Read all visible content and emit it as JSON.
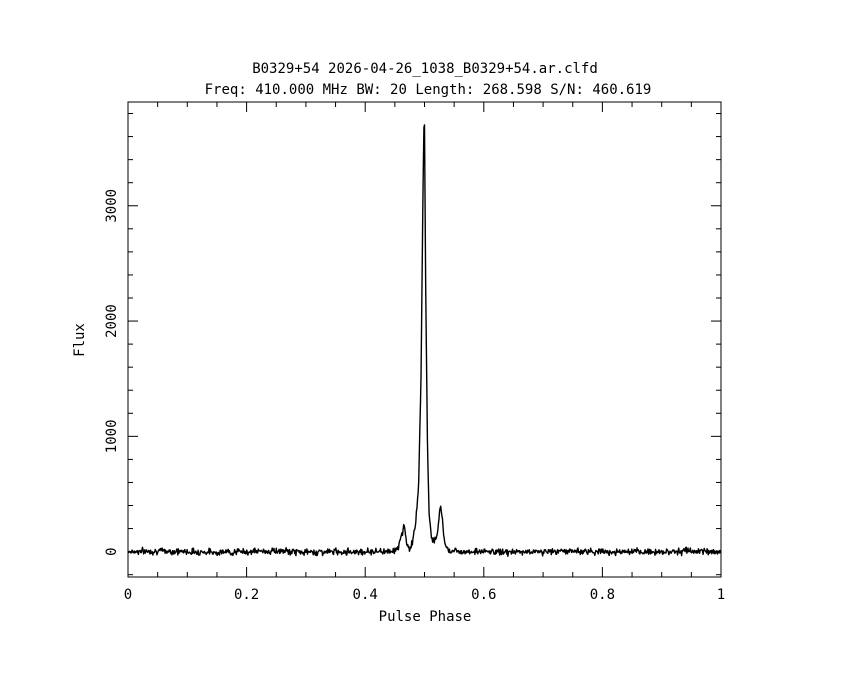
{
  "chart_data": {
    "type": "line",
    "title": "B0329+54 2026-04-26_1038_B0329+54.ar.clfd",
    "subtitle": "Freq: 410.000 MHz BW: 20 Length: 268.598 S/N: 460.619",
    "xlabel": "Pulse Phase",
    "ylabel": "Flux",
    "xlim": [
      0,
      1
    ],
    "ylim": [
      -220,
      3900
    ],
    "x_ticks": [
      0,
      0.2,
      0.4,
      0.6,
      0.8,
      1
    ],
    "x_tick_labels": [
      "0",
      "0.2",
      "0.4",
      "0.6",
      "0.8",
      "1"
    ],
    "y_ticks": [
      0,
      1000,
      2000,
      3000
    ],
    "y_tick_labels": [
      "0",
      "1000",
      "2000",
      "3000"
    ],
    "grid": false,
    "series": [
      {
        "x": [
          0.0,
          0.05,
          0.1,
          0.15,
          0.2,
          0.25,
          0.3,
          0.35,
          0.4,
          0.44,
          0.455,
          0.462,
          0.466,
          0.47,
          0.475,
          0.48,
          0.485,
          0.49,
          0.494,
          0.497,
          0.499,
          0.5,
          0.502,
          0.505,
          0.508,
          0.512,
          0.516,
          0.52,
          0.524,
          0.527,
          0.53,
          0.533,
          0.536,
          0.54,
          0.545,
          0.55,
          0.6,
          0.65,
          0.7,
          0.75,
          0.8,
          0.85,
          0.9,
          0.95,
          1.0
        ],
        "values": [
          0,
          5,
          0,
          -5,
          0,
          5,
          -5,
          0,
          0,
          5,
          20,
          150,
          240,
          60,
          20,
          90,
          250,
          560,
          1450,
          2900,
          3700,
          3720,
          2300,
          900,
          300,
          120,
          100,
          110,
          240,
          420,
          300,
          120,
          40,
          20,
          10,
          5,
          0,
          -5,
          0,
          5,
          0,
          -5,
          0,
          5,
          0
        ]
      }
    ]
  }
}
